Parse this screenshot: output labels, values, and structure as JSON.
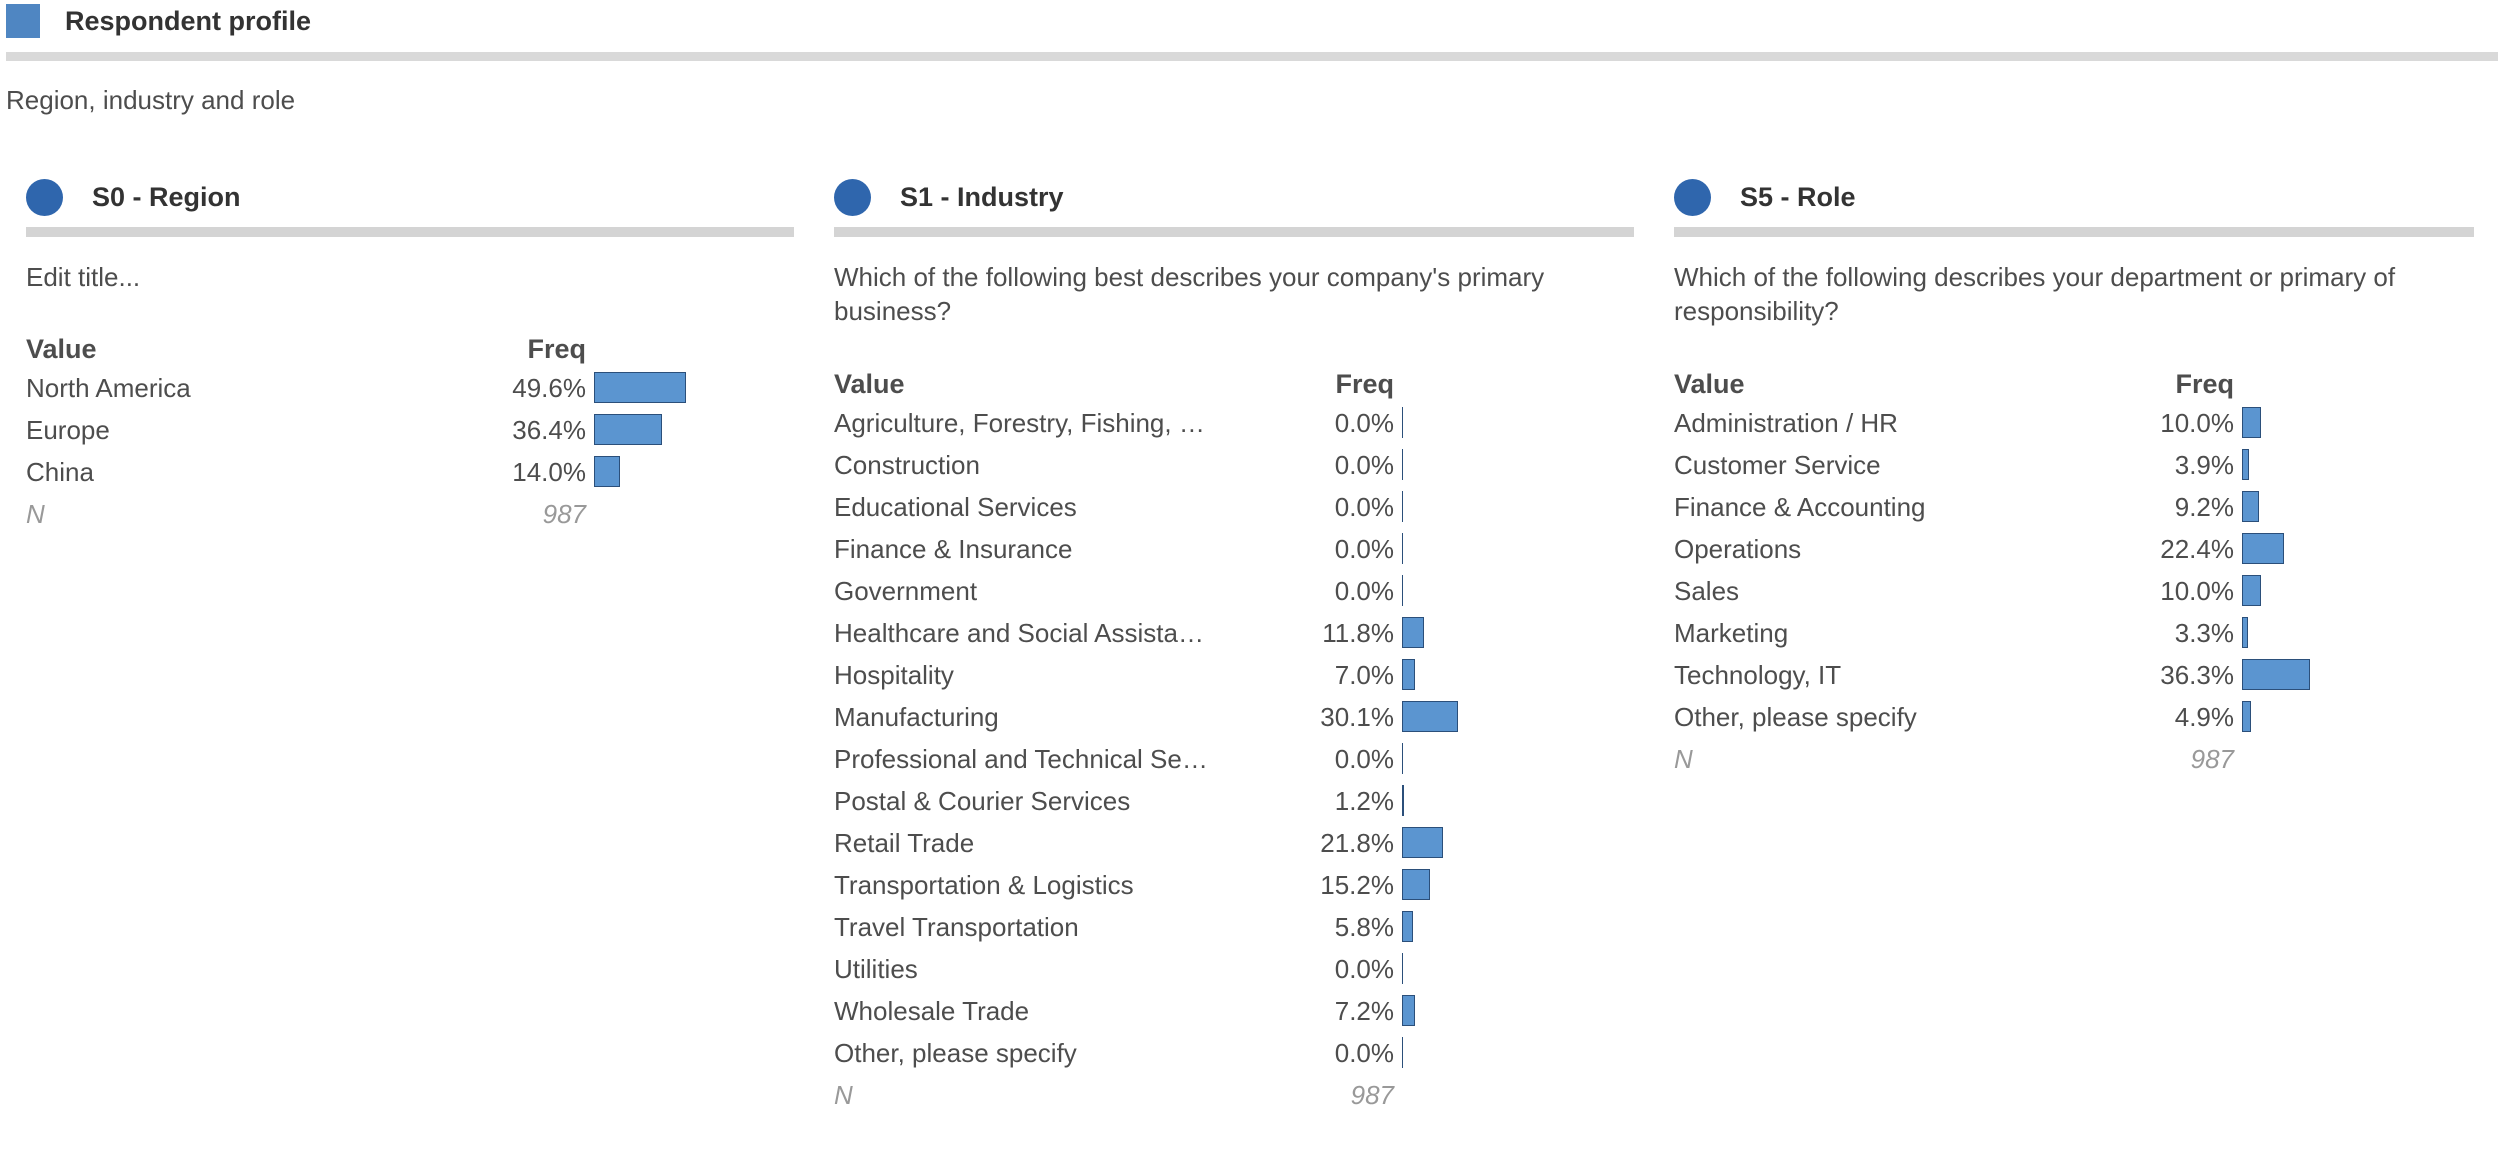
{
  "header": {
    "title": "Respondent profile",
    "subtitle": "Region, industry and role",
    "accent_color": "#4f86c2"
  },
  "bar_color": "#5b95d0",
  "chart_data": [
    {
      "type": "table",
      "title": "S0 - Region",
      "subtitle": "Edit title...",
      "columns": [
        "Value",
        "Freq"
      ],
      "categories": [
        "North America",
        "Europe",
        "China"
      ],
      "labels": [
        "49.6%",
        "36.4%",
        "14.0%"
      ],
      "values": [
        49.6,
        36.4,
        14.0
      ],
      "n_label": "N",
      "n_value": "987"
    },
    {
      "type": "table",
      "title": "S1 - Industry",
      "subtitle": "Which of the following best describes your company's primary business?",
      "columns": [
        "Value",
        "Freq"
      ],
      "categories": [
        "Agriculture, Forestry, Fishing, …",
        "Construction",
        "Educational Services",
        "Finance & Insurance",
        "Government",
        "Healthcare and Social Assista…",
        "Hospitality",
        "Manufacturing",
        "Professional and Technical Se…",
        "Postal & Courier Services",
        "Retail Trade",
        "Transportation & Logistics",
        "Travel Transportation",
        "Utilities",
        "Wholesale Trade",
        "Other, please specify"
      ],
      "labels": [
        "0.0%",
        "0.0%",
        "0.0%",
        "0.0%",
        "0.0%",
        "11.8%",
        "7.0%",
        "30.1%",
        "0.0%",
        "1.2%",
        "21.8%",
        "15.2%",
        "5.8%",
        "0.0%",
        "7.2%",
        "0.0%"
      ],
      "values": [
        0.0,
        0.0,
        0.0,
        0.0,
        0.0,
        11.8,
        7.0,
        30.1,
        0.0,
        1.2,
        21.8,
        15.2,
        5.8,
        0.0,
        7.2,
        0.0
      ],
      "n_label": "N",
      "n_value": "987"
    },
    {
      "type": "table",
      "title": "S5 - Role",
      "subtitle": "Which of the following describes your department or primary of responsibility?",
      "columns": [
        "Value",
        "Freq"
      ],
      "categories": [
        "Administration / HR",
        "Customer Service",
        "Finance & Accounting",
        "Operations",
        "Sales",
        "Marketing",
        "Technology, IT",
        "Other, please specify"
      ],
      "labels": [
        "10.0%",
        "3.9%",
        "9.2%",
        "22.4%",
        "10.0%",
        "3.3%",
        "36.3%",
        "4.9%"
      ],
      "values": [
        10.0,
        3.9,
        9.2,
        22.4,
        10.0,
        3.3,
        36.3,
        4.9
      ],
      "n_label": "N",
      "n_value": "987"
    }
  ]
}
